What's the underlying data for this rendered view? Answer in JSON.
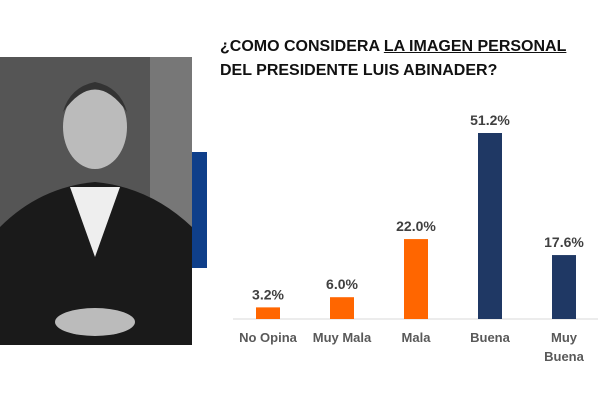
{
  "title": {
    "prefix": "¿COMO CONSIDERA ",
    "underlined": "LA IMAGEN PERSONAL",
    "line2": "DEL PRESIDENTE LUIS ABINADER?"
  },
  "colors": {
    "negative": "#ff6600",
    "positive": "#1f3864",
    "accent": "#0f3f8a"
  },
  "chart_data": {
    "type": "bar",
    "categories": [
      "No Opina",
      "Muy Mala",
      "Mala",
      "Buena",
      "Muy Buena"
    ],
    "values": [
      3.2,
      6.0,
      22.0,
      51.2,
      17.6
    ],
    "labels": [
      "3.2%",
      "6.0%",
      "22.0%",
      "51.2%",
      "17.6%"
    ],
    "bar_colors": [
      "#ff6600",
      "#ff6600",
      "#ff6600",
      "#1f3864",
      "#1f3864"
    ],
    "title": "¿COMO CONSIDERA LA IMAGEN PERSONAL DEL PRESIDENTE LUIS ABINADER?",
    "xlabel": "",
    "ylabel": "",
    "ylim": [
      0,
      55
    ],
    "grid": false
  }
}
